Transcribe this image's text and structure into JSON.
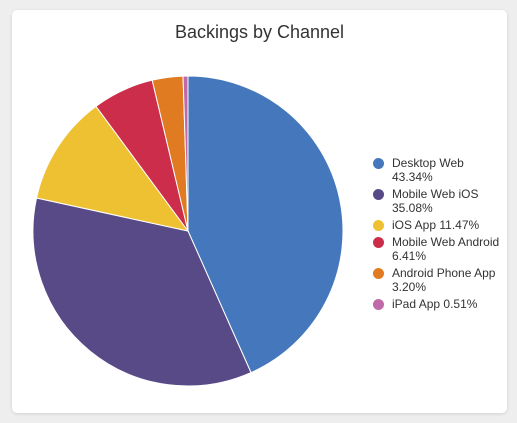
{
  "chart_data": {
    "type": "pie",
    "title": "Backings by Channel",
    "legend_position": "right",
    "slices": [
      {
        "label": "Desktop Web",
        "value": 43.34,
        "value_label": "43.34%",
        "color": "#4477bb"
      },
      {
        "label": "Mobile Web iOS",
        "value": 35.08,
        "value_label": "35.08%",
        "color": "#574a87"
      },
      {
        "label": "iOS App",
        "value": 11.47,
        "value_label": "11.47%",
        "color": "#eec133"
      },
      {
        "label": "Mobile Web Android",
        "value": 6.41,
        "value_label": "6.41%",
        "color": "#cc2d4a"
      },
      {
        "label": "Android Phone App",
        "value": 3.2,
        "value_label": "3.20%",
        "color": "#e07b22"
      },
      {
        "label": "iPad App",
        "value": 0.51,
        "value_label": "0.51%",
        "color": "#bf69a8"
      }
    ]
  }
}
